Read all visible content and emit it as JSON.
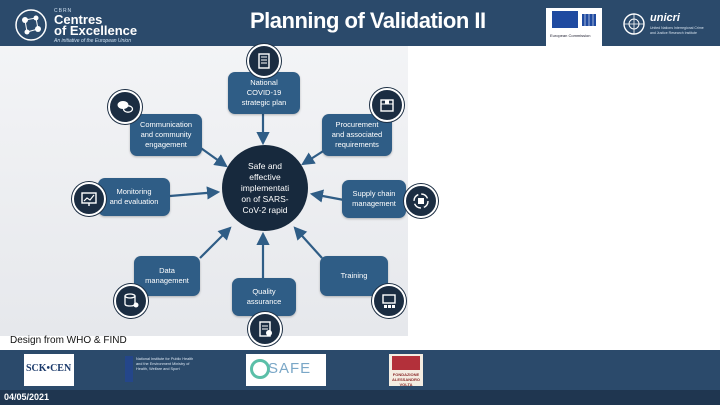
{
  "header": {
    "title": "Planning of Validation II",
    "logo": {
      "small": "CBRN",
      "line1": "Centres",
      "line2": "of Excellence",
      "tagline": "An initiative of the European Union"
    },
    "eu_text": "European Commission",
    "unicri_name": "unicri",
    "unicri_sub": "United Nations Interregional Crime and Justice Research Institute"
  },
  "diagram": {
    "hub": "Safe and\neffective\nimplementati\non of SARS-\nCoV-2 rapid",
    "nodes": {
      "national": "National\nCOVID-19\nstrategic plan",
      "procurement": "Procurement\nand associated\nrequirements",
      "supply": "Supply chain\nmanagement",
      "training": "Training",
      "quality": "Quality\nassurance",
      "data": "Data\nmanagement",
      "monitoring": "Monitoring\nand evaluation",
      "communication": "Communication\nand community\nengagement"
    },
    "icons": {
      "national": "book-icon",
      "procurement": "box-icon",
      "supply": "cycle-box-icon",
      "training": "presentation-icon",
      "quality": "checklist-icon",
      "data": "database-gear-icon",
      "monitoring": "monitor-chart-icon",
      "communication": "chat-bubbles-icon"
    },
    "colors": {
      "node": "#2f5d86",
      "hub": "#17293d",
      "arrow": "#2f5d86",
      "header": "#2b4a6b"
    }
  },
  "credit": "Design from WHO & FIND",
  "footer": {
    "date": "04/05/2021",
    "partners": {
      "sck": "SCK•CEN",
      "rivm": "National Institute for Public Health and the Environment Ministry of Health, Welfare and Sport",
      "safe": "SAFE",
      "volta": "FONDAZIONE ALESSANDRO VOLTA"
    }
  }
}
